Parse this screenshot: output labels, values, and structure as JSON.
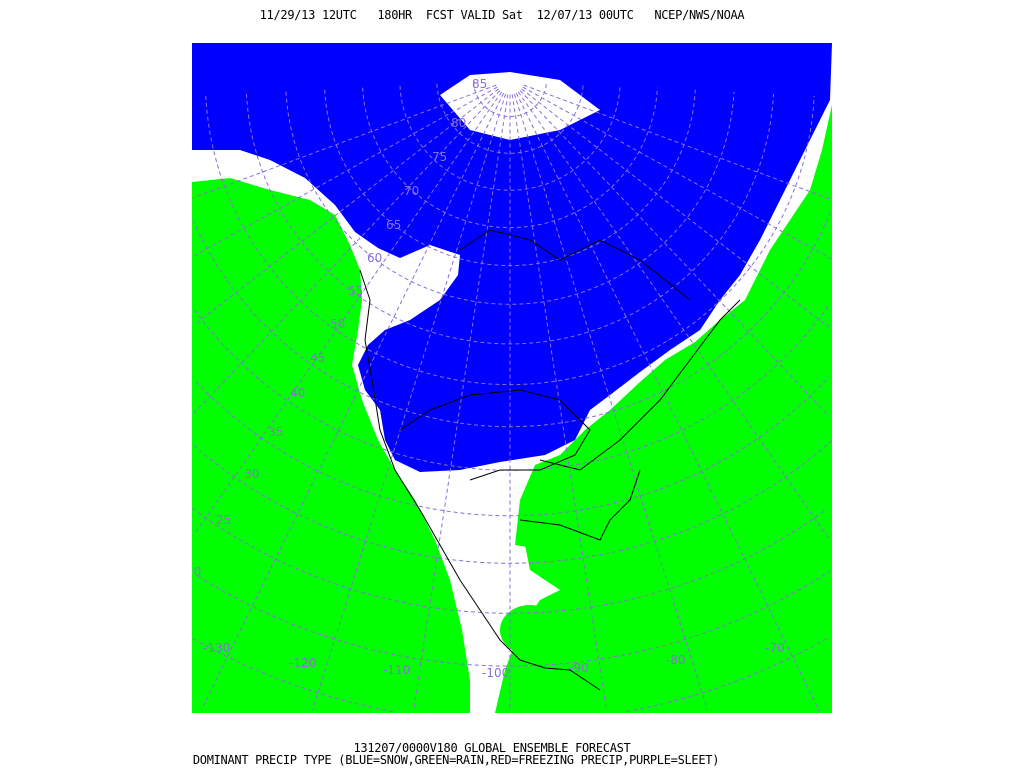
{
  "header": {
    "title": "11/29/13 12UTC   180HR  FCST VALID Sat  12/07/13 00UTC   NCEP/NWS/NOAA"
  },
  "footer": {
    "line1": "131207/0000V180 GLOBAL ENSEMBLE FORECAST",
    "line2": "DOMINANT PRECIP TYPE (BLUE=SNOW,GREEN=RAIN,RED=FREEZING PRECIP,PURPLE=SLEET)"
  },
  "map": {
    "projection": "lambert-conformal",
    "colors": {
      "snow": "#0000ff",
      "rain": "#00ff00",
      "freezing_precip": "#ff0000",
      "sleet": "#800080",
      "graticule": "#8a6fd8",
      "background": "#ffffff"
    },
    "lat_labels": [
      "85",
      "80",
      "75",
      "70",
      "65",
      "60",
      "55",
      "50",
      "45",
      "40",
      "35",
      "30",
      "25",
      "20"
    ],
    "lon_labels": [
      "-130",
      "-120",
      "-110",
      "-100",
      "-90",
      "-80",
      "-70"
    ]
  }
}
